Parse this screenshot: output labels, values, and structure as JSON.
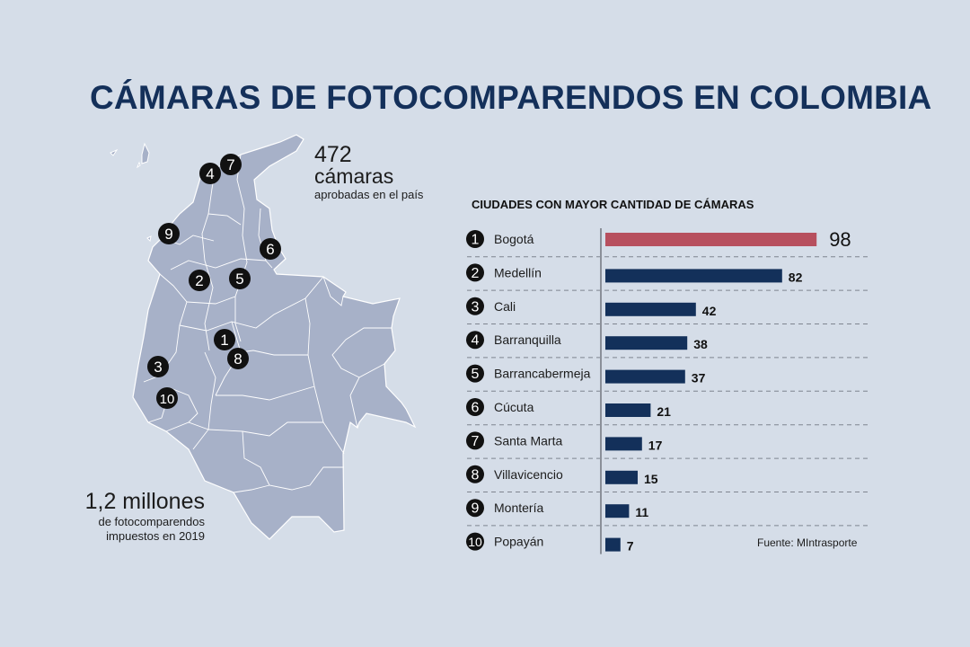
{
  "title": "CÁMARAS DE FOTOCOMPARENDOS EN COLOMBIA",
  "stats": {
    "cameras_number": "472",
    "cameras_unit": "cámaras",
    "cameras_desc": "aprobadas en el país",
    "fines_number": "1,2 millones",
    "fines_desc_line1": "de fotocomparendos",
    "fines_desc_line2": "impuestos en 2019"
  },
  "chart_title": "CIUDADES CON MAYOR CANTIDAD DE CÁMARAS",
  "source": "Fuente: MIntrasporte",
  "colors": {
    "title": "#14305a",
    "bar": "#13305a",
    "highlight_bar": "#b74f5e",
    "map_fill": "#a7b1c8",
    "marker": "#111111"
  },
  "chart_data": {
    "type": "bar",
    "orientation": "horizontal",
    "title": "CIUDADES CON MAYOR CANTIDAD DE CÁMARAS",
    "ranks": [
      "1",
      "2",
      "3",
      "4",
      "5",
      "6",
      "7",
      "8",
      "9",
      "10"
    ],
    "categories": [
      "Bogotá",
      "Medellín",
      "Cali",
      "Barranquilla",
      "Barrancabermeja",
      "Cúcuta",
      "Santa Marta",
      "Villavicencio",
      "Montería",
      "Popayán"
    ],
    "values": [
      98,
      82,
      42,
      38,
      37,
      21,
      17,
      15,
      11,
      7
    ],
    "highlight_index": 0,
    "xlim": [
      0,
      100
    ],
    "grid": false
  }
}
